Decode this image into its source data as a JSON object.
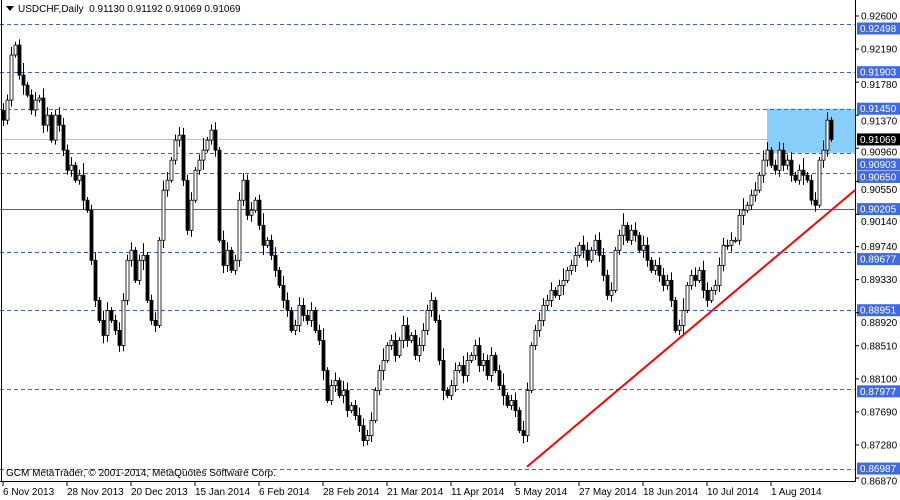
{
  "header": {
    "symbol_timeframe": "USDCHF,Daily",
    "ohlc": "0.91130 0.91192 0.91069 0.91069"
  },
  "copyright": "GCM MetaTrader, © 2001-2014, MetaQuotes Software Corp.",
  "colors": {
    "bull_body": "#ffffff",
    "bear_body": "#000000",
    "level_line": "#3b5fd9",
    "label_bg": "#4169e1",
    "current_bg": "#000000",
    "trendline": "#ff0000",
    "zone_fill": "#87cefa",
    "current_line": "#c0c0c0"
  },
  "chart_data": {
    "type": "candlestick",
    "symbol": "USDCHF",
    "timeframe": "Daily",
    "ylim": [
      0.8687,
      0.926
    ],
    "y_ticks": [
      "0.92600",
      "0.92190",
      "0.91780",
      "0.91370",
      "0.90960",
      "0.90550",
      "0.90140",
      "0.89740",
      "0.89330",
      "0.88920",
      "0.88510",
      "0.88100",
      "0.87690",
      "0.87280",
      "0.86870"
    ],
    "x_ticks": [
      {
        "bar": 0,
        "label": "6 Nov 2013"
      },
      {
        "bar": 16,
        "label": "28 Nov 2013"
      },
      {
        "bar": 32,
        "label": "20 Dec 2013"
      },
      {
        "bar": 48,
        "label": "15 Jan 2014"
      },
      {
        "bar": 64,
        "label": "6 Feb 2014"
      },
      {
        "bar": 80,
        "label": "28 Feb 2014"
      },
      {
        "bar": 96,
        "label": "21 Mar 2014"
      },
      {
        "bar": 112,
        "label": "11 Apr 2014"
      },
      {
        "bar": 128,
        "label": "5 May 2014"
      },
      {
        "bar": 144,
        "label": "27 May 2014"
      },
      {
        "bar": 160,
        "label": "18 Jun 2014"
      },
      {
        "bar": 176,
        "label": "10 Jul 2014"
      },
      {
        "bar": 192,
        "label": "1 Aug 2014"
      }
    ],
    "closes": [
      0.91308,
      0.91557,
      0.92116,
      0.9224,
      0.91867,
      0.91743,
      0.91619,
      0.91433,
      0.91557,
      0.91582,
      0.91246,
      0.9137,
      0.9106,
      0.9137,
      0.91246,
      0.90936,
      0.90687,
      0.90749,
      0.90563,
      0.90625,
      0.90315,
      0.90191,
      0.8957,
      0.89073,
      0.88824,
      0.88638,
      0.88949,
      0.88824,
      0.887,
      0.88514,
      0.89073,
      0.8957,
      0.89694,
      0.89321,
      0.8957,
      0.89632,
      0.89073,
      0.88824,
      0.88762,
      0.89818,
      0.90439,
      0.90563,
      0.90812,
      0.9106,
      0.91122,
      0.90563,
      0.89942,
      0.90315,
      0.90687,
      0.90812,
      0.90936,
      0.9106,
      0.91184,
      0.90936,
      0.89818,
      0.89507,
      0.89694,
      0.89445,
      0.8957,
      0.90315,
      0.90563,
      0.90128,
      0.90191,
      0.90315,
      0.90004,
      0.89756,
      0.89818,
      0.89632,
      0.89445,
      0.89259,
      0.89073,
      0.88949,
      0.887,
      0.88762,
      0.89011,
      0.88886,
      0.88824,
      0.88949,
      0.887,
      0.88576,
      0.88203,
      0.87831,
      0.88017,
      0.88079,
      0.87893,
      0.87955,
      0.87707,
      0.87769,
      0.87644,
      0.8752,
      0.87334,
      0.87396,
      0.87582,
      0.87955,
      0.88203,
      0.88328,
      0.88514,
      0.88576,
      0.8839,
      0.88576,
      0.88762,
      0.88576,
      0.88638,
      0.8839,
      0.88514,
      0.887,
      0.88949,
      0.89073,
      0.88824,
      0.88328,
      0.87955,
      0.87893,
      0.88017,
      0.88203,
      0.88265,
      0.88141,
      0.88328,
      0.8839,
      0.88514,
      0.88265,
      0.88328,
      0.88141,
      0.8839,
      0.88203,
      0.88017,
      0.87893,
      0.87769,
      0.87831,
      0.87707,
      0.87458,
      0.87396,
      0.87955,
      0.88514,
      0.887,
      0.88824,
      0.89011,
      0.89073,
      0.89197,
      0.89135,
      0.89259,
      0.89321,
      0.89445,
      0.89507,
      0.89632,
      0.89756,
      0.89694,
      0.8957,
      0.89694,
      0.89818,
      0.89632,
      0.89383,
      0.89135,
      0.89197,
      0.89694,
      0.8988,
      0.90004,
      0.89818,
      0.89942,
      0.8988,
      0.89694,
      0.89756,
      0.8957,
      0.89445,
      0.89507,
      0.89383,
      0.89259,
      0.89321,
      0.89073,
      0.887,
      0.88762,
      0.88949,
      0.89259,
      0.89383,
      0.89321,
      0.89445,
      0.89197,
      0.89073,
      0.89197,
      0.89259,
      0.89507,
      0.89756,
      0.89756,
      0.89818,
      0.89818,
      0.90128,
      0.90191,
      0.90253,
      0.90377,
      0.90439,
      0.90625,
      0.90812,
      0.90936,
      0.90749,
      0.90687,
      0.90936,
      0.90749,
      0.90812,
      0.90625,
      0.90563,
      0.90687,
      0.90625,
      0.90563,
      0.90315,
      0.90253,
      0.90812,
      0.90936,
      0.91308,
      0.91069
    ],
    "levels": [
      {
        "price": 0.92498,
        "label": "0.92498",
        "style": "dashed"
      },
      {
        "price": 0.91903,
        "label": "0.91903",
        "style": "dashed"
      },
      {
        "price": 0.9145,
        "label": "0.91450",
        "style": "dashed"
      },
      {
        "price": 0.90903,
        "label": "0.90903",
        "style": "dashed"
      },
      {
        "price": 0.9065,
        "label": "0.90650",
        "style": "dashed"
      },
      {
        "price": 0.90205,
        "label": "0.90205",
        "style": "solid"
      },
      {
        "price": 0.89677,
        "label": "0.89677",
        "style": "dashed"
      },
      {
        "price": 0.88951,
        "label": "0.88951",
        "style": "dashed"
      },
      {
        "price": 0.87977,
        "label": "0.87977",
        "style": "dashed"
      },
      {
        "price": 0.86987,
        "label": "0.86987",
        "style": "dashed"
      }
    ],
    "current_price": {
      "price": 0.91069,
      "label": "0.91069"
    },
    "trendline": {
      "from": {
        "bar": 131,
        "price": 0.8701
      },
      "to": {
        "bar": 213,
        "price": 0.9044
      }
    },
    "zone": {
      "from_bar": 191,
      "to_bar": 213,
      "top": 0.9145,
      "bottom": 0.90903
    }
  }
}
